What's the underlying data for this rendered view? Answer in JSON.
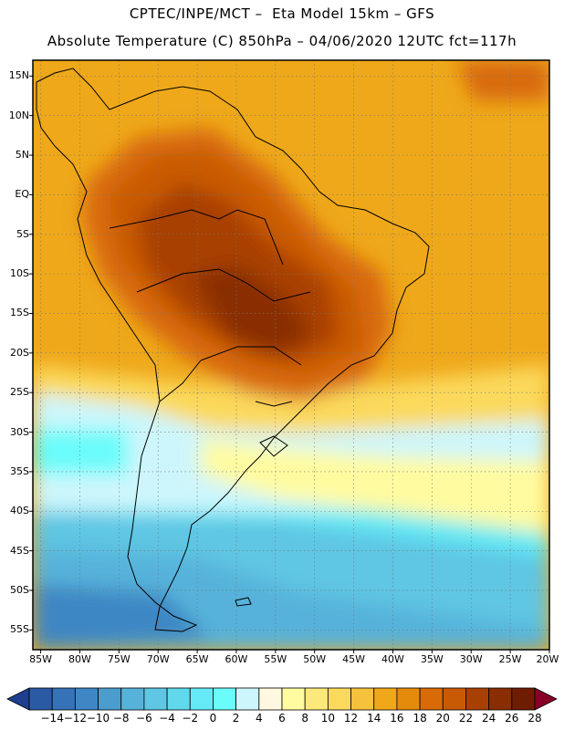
{
  "header": {
    "line1": "CPTEC/INPE/MCT –  Eta Model 15km – GFS",
    "line2": "Absolute Temperature (C) 850hPa – 04/06/2020 12UTC fct=117h"
  },
  "map": {
    "lat_labels": [
      "15N",
      "10N",
      "5N",
      "EQ",
      "5S",
      "10S",
      "15S",
      "20S",
      "25S",
      "30S",
      "35S",
      "40S",
      "45S",
      "50S",
      "55S"
    ],
    "lon_labels": [
      "85W",
      "80W",
      "75W",
      "70W",
      "65W",
      "60W",
      "55W",
      "50W",
      "45W",
      "40W",
      "35W",
      "30W",
      "25W",
      "20W"
    ],
    "lat_range": [
      17,
      -57.5
    ],
    "lon_range": [
      -86,
      -20
    ]
  },
  "colorbar": {
    "labels": [
      "-14",
      "-12",
      "-10",
      "-8",
      "-6",
      "-4",
      "-2",
      "0",
      "2",
      "4",
      "6",
      "8",
      "10",
      "12",
      "14",
      "16",
      "18",
      "20",
      "22",
      "24",
      "26",
      "28"
    ],
    "colors": [
      "#1d3f8e",
      "#2b5aa5",
      "#3672b8",
      "#3e87c4",
      "#4b9dd0",
      "#57b2da",
      "#5fc6e3",
      "#62d8ec",
      "#64eaf6",
      "#6afcfb",
      "#cdf6fc",
      "#fff8e0",
      "#fffba0",
      "#fde97a",
      "#fbd95c",
      "#f6c23e",
      "#efa81a",
      "#e48b0c",
      "#d86a08",
      "#c95a05",
      "#a84004",
      "#892e03",
      "#6f1d02",
      "#870025"
    ]
  }
}
